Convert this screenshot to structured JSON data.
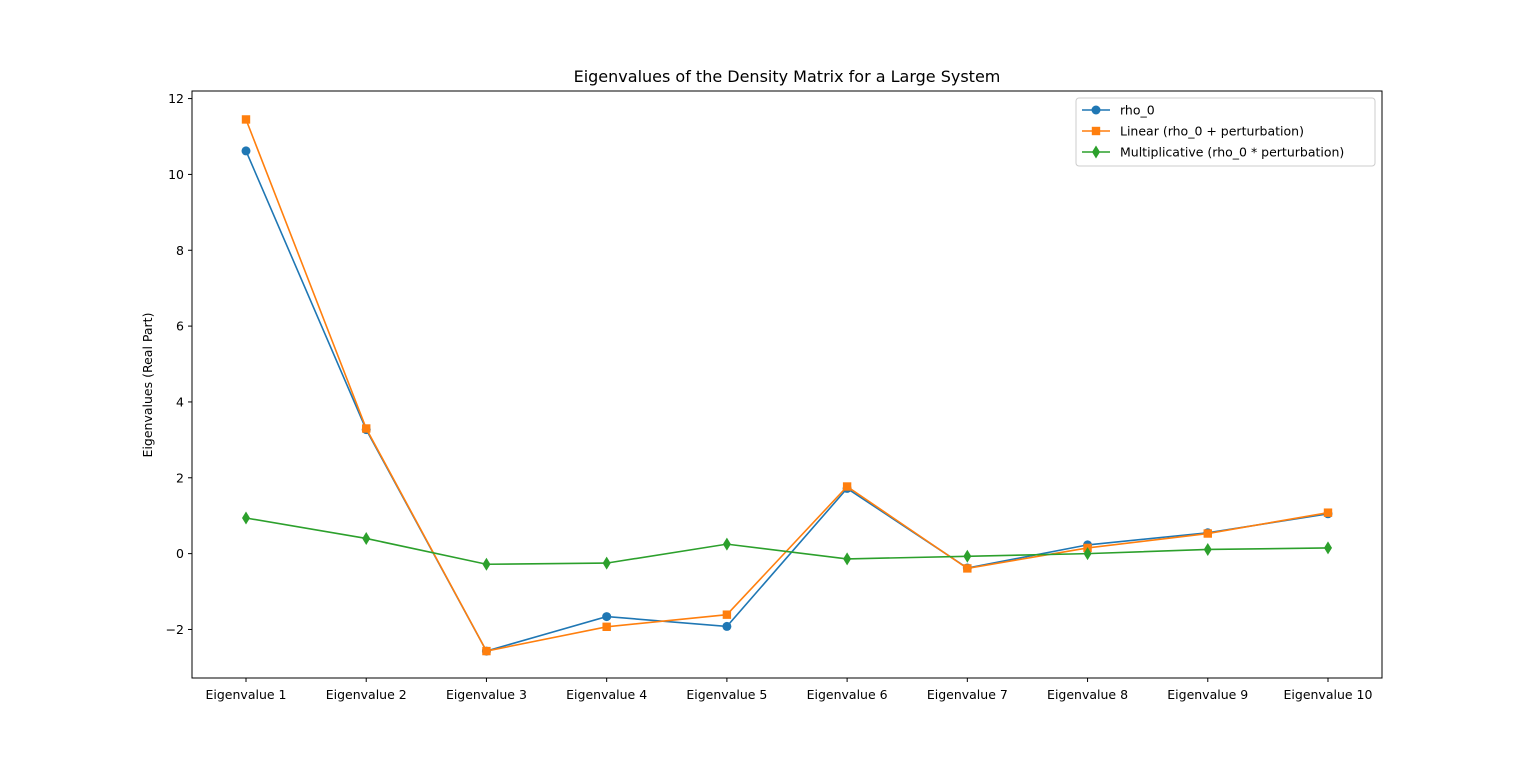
{
  "chart_data": {
    "type": "line",
    "title": "Eigenvalues of the Density Matrix for a Large System",
    "xlabel": "",
    "ylabel": "Eigenvalues (Real Part)",
    "categories": [
      "Eigenvalue 1",
      "Eigenvalue 2",
      "Eigenvalue 3",
      "Eigenvalue 4",
      "Eigenvalue 5",
      "Eigenvalue 6",
      "Eigenvalue 7",
      "Eigenvalue 8",
      "Eigenvalue 9",
      "Eigenvalue 10"
    ],
    "ylim": [
      -3.28,
      12.2
    ],
    "yticks": [
      -2,
      0,
      2,
      4,
      6,
      8,
      10,
      12
    ],
    "ytick_labels": [
      "−2",
      "0",
      "2",
      "4",
      "6",
      "8",
      "10",
      "12"
    ],
    "grid": false,
    "legend_position": "top-right",
    "series": [
      {
        "name": "rho_0",
        "color": "#1f77b4",
        "marker": "circle",
        "values": [
          10.62,
          3.27,
          -2.57,
          -1.66,
          -1.92,
          1.72,
          -0.38,
          0.23,
          0.55,
          1.05
        ]
      },
      {
        "name": "Linear (rho_0 + perturbation)",
        "color": "#ff7f0e",
        "marker": "square",
        "values": [
          11.45,
          3.3,
          -2.57,
          -1.93,
          -1.61,
          1.77,
          -0.39,
          0.15,
          0.53,
          1.08
        ]
      },
      {
        "name": "Multiplicative (rho_0 * perturbation)",
        "color": "#2ca02c",
        "marker": "diamond",
        "values": [
          0.94,
          0.4,
          -0.28,
          -0.25,
          0.25,
          -0.14,
          -0.07,
          0.0,
          0.11,
          0.15
        ]
      }
    ]
  }
}
